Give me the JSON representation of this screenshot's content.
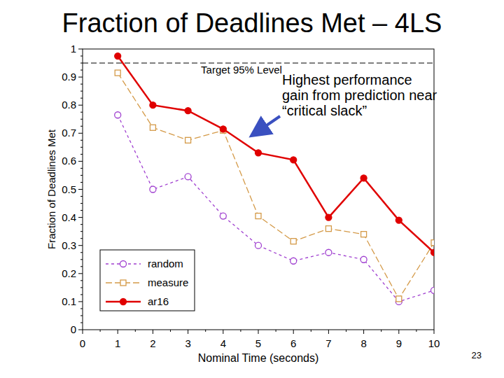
{
  "chart_data": {
    "type": "line",
    "title": "Fraction of Deadlines Met – 4LS",
    "x_label": "Nominal Time (seconds)",
    "y_label": "Fraction of Deadlines Met",
    "x": [
      1,
      2,
      3,
      4,
      5,
      6,
      7,
      8,
      9,
      10
    ],
    "series": [
      {
        "name": "random",
        "color": "#a040d0",
        "marker": "circle-open",
        "line_style": "dashed",
        "values": [
          0.765,
          0.5,
          0.545,
          0.405,
          0.3,
          0.245,
          0.275,
          0.25,
          0.1,
          0.14
        ]
      },
      {
        "name": "measure",
        "color": "#d49a48",
        "marker": "square-open",
        "line_style": "longdash",
        "values": [
          0.915,
          0.72,
          0.675,
          0.71,
          0.405,
          0.315,
          0.36,
          0.34,
          0.11,
          0.31
        ]
      },
      {
        "name": "ar16",
        "color": "#e00000",
        "marker": "circle",
        "line_style": "solid",
        "values": [
          0.975,
          0.8,
          0.78,
          0.715,
          0.63,
          0.605,
          0.4,
          0.54,
          0.39,
          0.275
        ]
      }
    ],
    "xlim": [
      0,
      10
    ],
    "xticks": [
      0,
      1,
      2,
      3,
      4,
      5,
      6,
      7,
      8,
      9,
      10
    ],
    "ylim": [
      0,
      1
    ],
    "yticks": [
      0,
      0.1,
      0.2,
      0.3,
      0.4,
      0.5,
      0.6,
      0.7,
      0.8,
      0.9,
      1
    ],
    "target": {
      "value": 0.95,
      "label": "Target 95% Level"
    },
    "annotation": "Highest performance gain from prediction near “critical slack”",
    "page_number": "23",
    "legend": "lower left",
    "grid": false
  }
}
